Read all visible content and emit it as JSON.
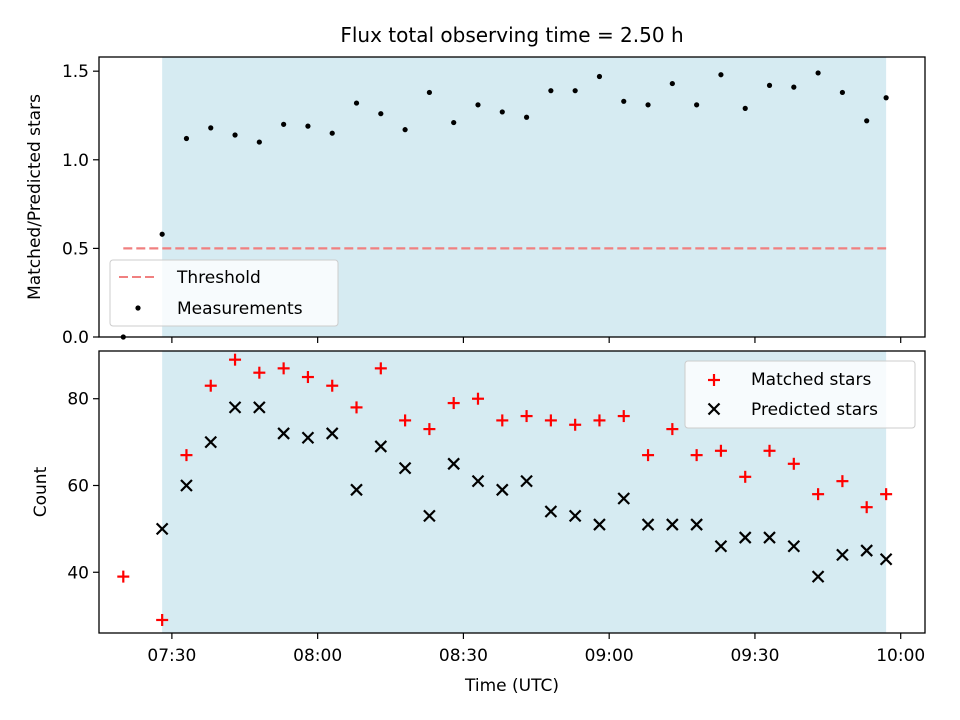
{
  "chart_data": {
    "title": "Flux total observing time = 2.50 h",
    "xlabel": "Time (UTC)",
    "x_tick_labels": [
      "07:30",
      "08:00",
      "08:30",
      "09:00",
      "09:30",
      "10:00"
    ],
    "x_tick_minutes": [
      450,
      480,
      510,
      540,
      570,
      600
    ],
    "xlim_minutes": [
      435,
      605
    ],
    "observing_window_minutes": [
      448,
      597
    ],
    "observing_window_color": "#add8e6",
    "x_minutes": [
      440,
      448,
      453,
      458,
      463,
      468,
      473,
      478,
      483,
      488,
      493,
      498,
      503,
      508,
      513,
      518,
      523,
      528,
      533,
      538,
      543,
      548,
      553,
      558,
      563,
      568,
      573,
      578,
      583,
      588,
      593,
      597
    ],
    "panels": [
      {
        "type": "scatter",
        "ylabel": "Matched/Predicted stars",
        "ylim": [
          0,
          1.58
        ],
        "y_ticks": [
          "0.0",
          "0.5",
          "1.0",
          "1.5"
        ],
        "legend_position": "lower-left",
        "threshold": {
          "name": "Threshold",
          "value": 0.5,
          "color": "#f08080",
          "x_range_minutes": [
            440,
            597
          ]
        },
        "series": [
          {
            "name": "Measurements",
            "marker": "dot",
            "color": "#000000",
            "values": [
              0.0,
              0.58,
              1.12,
              1.18,
              1.14,
              1.1,
              1.2,
              1.19,
              1.15,
              1.32,
              1.26,
              1.17,
              1.38,
              1.21,
              1.31,
              1.27,
              1.24,
              1.39,
              1.39,
              1.47,
              1.33,
              1.31,
              1.43,
              1.31,
              1.48,
              1.29,
              1.42,
              1.41,
              1.49,
              1.38,
              1.22,
              1.35
            ]
          }
        ]
      },
      {
        "type": "scatter",
        "ylabel": "Count",
        "ylim": [
          26,
          91
        ],
        "y_ticks": [
          "40",
          "60",
          "80"
        ],
        "legend_position": "top-right",
        "series": [
          {
            "name": "Matched stars",
            "marker": "plus",
            "color": "#ff0000",
            "values": [
              39,
              29,
              67,
              83,
              89,
              86,
              87,
              85,
              83,
              78,
              87,
              75,
              73,
              79,
              80,
              75,
              76,
              75,
              74,
              75,
              76,
              67,
              73,
              67,
              68,
              62,
              68,
              65,
              58,
              61,
              55,
              58
            ]
          },
          {
            "name": "Predicted stars",
            "marker": "x",
            "color": "#000000",
            "values": [
              null,
              50,
              60,
              70,
              78,
              78,
              72,
              71,
              72,
              59,
              69,
              64,
              53,
              65,
              61,
              59,
              61,
              54,
              53,
              51,
              57,
              51,
              51,
              51,
              46,
              48,
              48,
              46,
              39,
              44,
              45,
              43
            ]
          }
        ]
      }
    ]
  }
}
